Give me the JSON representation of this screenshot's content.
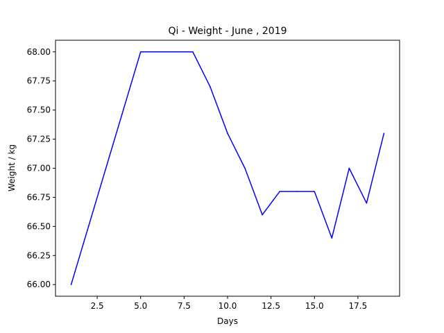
{
  "chart_data": {
    "type": "line",
    "title": "Qi - Weight - June , 2019",
    "xlabel": "Days",
    "ylabel": "Weight / kg",
    "xlim": [
      0.1,
      19.9
    ],
    "ylim": [
      65.9,
      68.1
    ],
    "xticks": [
      2.5,
      5.0,
      7.5,
      10.0,
      12.5,
      15.0,
      17.5
    ],
    "xtick_labels": [
      "2.5",
      "5.0",
      "7.5",
      "10.0",
      "12.5",
      "15.0",
      "17.5"
    ],
    "yticks": [
      66.0,
      66.25,
      66.5,
      66.75,
      67.0,
      67.25,
      67.5,
      67.75,
      68.0
    ],
    "ytick_labels": [
      "66.00",
      "66.25",
      "66.50",
      "66.75",
      "67.00",
      "67.25",
      "67.50",
      "67.75",
      "68.00"
    ],
    "grid": false,
    "series": [
      {
        "color": "#0000ff",
        "x": [
          1,
          2,
          3,
          4,
          5,
          6,
          7,
          8,
          9,
          10,
          11,
          12,
          13,
          14,
          15,
          16,
          17,
          18,
          19
        ],
        "y": [
          66.0,
          66.5,
          67.0,
          67.5,
          68.0,
          68.0,
          68.0,
          68.0,
          67.7,
          67.3,
          67.0,
          66.6,
          66.8,
          66.8,
          66.8,
          66.4,
          67.0,
          66.7,
          67.3
        ]
      }
    ]
  }
}
